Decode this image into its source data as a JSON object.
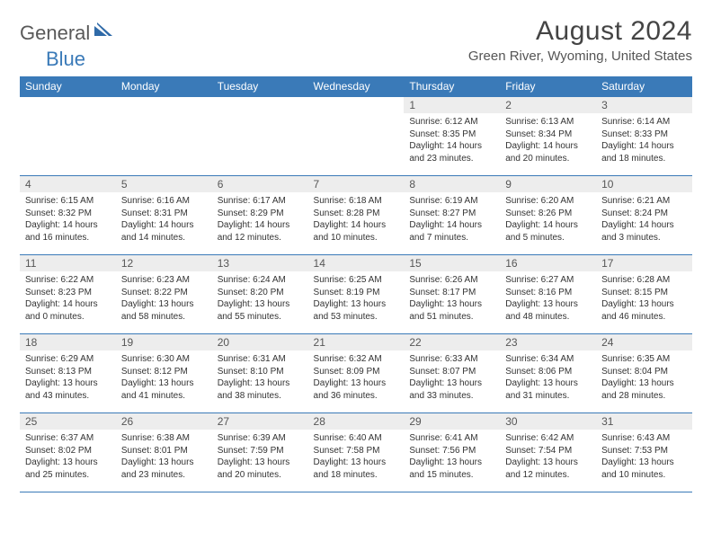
{
  "logo": {
    "text_general": "General",
    "text_blue": "Blue",
    "mark_color": "#2f6aa8"
  },
  "header": {
    "title": "August 2024",
    "subtitle": "Green River, Wyoming, United States"
  },
  "colors": {
    "header_bg": "#3a7ab8",
    "header_text": "#ffffff",
    "daynum_bg": "#ededed",
    "border": "#3a7ab8"
  },
  "weekdays": [
    "Sunday",
    "Monday",
    "Tuesday",
    "Wednesday",
    "Thursday",
    "Friday",
    "Saturday"
  ],
  "weeks": [
    [
      {
        "empty": true
      },
      {
        "empty": true
      },
      {
        "empty": true
      },
      {
        "empty": true
      },
      {
        "day": "1",
        "sunrise": "Sunrise: 6:12 AM",
        "sunset": "Sunset: 8:35 PM",
        "daylight": "Daylight: 14 hours and 23 minutes."
      },
      {
        "day": "2",
        "sunrise": "Sunrise: 6:13 AM",
        "sunset": "Sunset: 8:34 PM",
        "daylight": "Daylight: 14 hours and 20 minutes."
      },
      {
        "day": "3",
        "sunrise": "Sunrise: 6:14 AM",
        "sunset": "Sunset: 8:33 PM",
        "daylight": "Daylight: 14 hours and 18 minutes."
      }
    ],
    [
      {
        "day": "4",
        "sunrise": "Sunrise: 6:15 AM",
        "sunset": "Sunset: 8:32 PM",
        "daylight": "Daylight: 14 hours and 16 minutes."
      },
      {
        "day": "5",
        "sunrise": "Sunrise: 6:16 AM",
        "sunset": "Sunset: 8:31 PM",
        "daylight": "Daylight: 14 hours and 14 minutes."
      },
      {
        "day": "6",
        "sunrise": "Sunrise: 6:17 AM",
        "sunset": "Sunset: 8:29 PM",
        "daylight": "Daylight: 14 hours and 12 minutes."
      },
      {
        "day": "7",
        "sunrise": "Sunrise: 6:18 AM",
        "sunset": "Sunset: 8:28 PM",
        "daylight": "Daylight: 14 hours and 10 minutes."
      },
      {
        "day": "8",
        "sunrise": "Sunrise: 6:19 AM",
        "sunset": "Sunset: 8:27 PM",
        "daylight": "Daylight: 14 hours and 7 minutes."
      },
      {
        "day": "9",
        "sunrise": "Sunrise: 6:20 AM",
        "sunset": "Sunset: 8:26 PM",
        "daylight": "Daylight: 14 hours and 5 minutes."
      },
      {
        "day": "10",
        "sunrise": "Sunrise: 6:21 AM",
        "sunset": "Sunset: 8:24 PM",
        "daylight": "Daylight: 14 hours and 3 minutes."
      }
    ],
    [
      {
        "day": "11",
        "sunrise": "Sunrise: 6:22 AM",
        "sunset": "Sunset: 8:23 PM",
        "daylight": "Daylight: 14 hours and 0 minutes."
      },
      {
        "day": "12",
        "sunrise": "Sunrise: 6:23 AM",
        "sunset": "Sunset: 8:22 PM",
        "daylight": "Daylight: 13 hours and 58 minutes."
      },
      {
        "day": "13",
        "sunrise": "Sunrise: 6:24 AM",
        "sunset": "Sunset: 8:20 PM",
        "daylight": "Daylight: 13 hours and 55 minutes."
      },
      {
        "day": "14",
        "sunrise": "Sunrise: 6:25 AM",
        "sunset": "Sunset: 8:19 PM",
        "daylight": "Daylight: 13 hours and 53 minutes."
      },
      {
        "day": "15",
        "sunrise": "Sunrise: 6:26 AM",
        "sunset": "Sunset: 8:17 PM",
        "daylight": "Daylight: 13 hours and 51 minutes."
      },
      {
        "day": "16",
        "sunrise": "Sunrise: 6:27 AM",
        "sunset": "Sunset: 8:16 PM",
        "daylight": "Daylight: 13 hours and 48 minutes."
      },
      {
        "day": "17",
        "sunrise": "Sunrise: 6:28 AM",
        "sunset": "Sunset: 8:15 PM",
        "daylight": "Daylight: 13 hours and 46 minutes."
      }
    ],
    [
      {
        "day": "18",
        "sunrise": "Sunrise: 6:29 AM",
        "sunset": "Sunset: 8:13 PM",
        "daylight": "Daylight: 13 hours and 43 minutes."
      },
      {
        "day": "19",
        "sunrise": "Sunrise: 6:30 AM",
        "sunset": "Sunset: 8:12 PM",
        "daylight": "Daylight: 13 hours and 41 minutes."
      },
      {
        "day": "20",
        "sunrise": "Sunrise: 6:31 AM",
        "sunset": "Sunset: 8:10 PM",
        "daylight": "Daylight: 13 hours and 38 minutes."
      },
      {
        "day": "21",
        "sunrise": "Sunrise: 6:32 AM",
        "sunset": "Sunset: 8:09 PM",
        "daylight": "Daylight: 13 hours and 36 minutes."
      },
      {
        "day": "22",
        "sunrise": "Sunrise: 6:33 AM",
        "sunset": "Sunset: 8:07 PM",
        "daylight": "Daylight: 13 hours and 33 minutes."
      },
      {
        "day": "23",
        "sunrise": "Sunrise: 6:34 AM",
        "sunset": "Sunset: 8:06 PM",
        "daylight": "Daylight: 13 hours and 31 minutes."
      },
      {
        "day": "24",
        "sunrise": "Sunrise: 6:35 AM",
        "sunset": "Sunset: 8:04 PM",
        "daylight": "Daylight: 13 hours and 28 minutes."
      }
    ],
    [
      {
        "day": "25",
        "sunrise": "Sunrise: 6:37 AM",
        "sunset": "Sunset: 8:02 PM",
        "daylight": "Daylight: 13 hours and 25 minutes."
      },
      {
        "day": "26",
        "sunrise": "Sunrise: 6:38 AM",
        "sunset": "Sunset: 8:01 PM",
        "daylight": "Daylight: 13 hours and 23 minutes."
      },
      {
        "day": "27",
        "sunrise": "Sunrise: 6:39 AM",
        "sunset": "Sunset: 7:59 PM",
        "daylight": "Daylight: 13 hours and 20 minutes."
      },
      {
        "day": "28",
        "sunrise": "Sunrise: 6:40 AM",
        "sunset": "Sunset: 7:58 PM",
        "daylight": "Daylight: 13 hours and 18 minutes."
      },
      {
        "day": "29",
        "sunrise": "Sunrise: 6:41 AM",
        "sunset": "Sunset: 7:56 PM",
        "daylight": "Daylight: 13 hours and 15 minutes."
      },
      {
        "day": "30",
        "sunrise": "Sunrise: 6:42 AM",
        "sunset": "Sunset: 7:54 PM",
        "daylight": "Daylight: 13 hours and 12 minutes."
      },
      {
        "day": "31",
        "sunrise": "Sunrise: 6:43 AM",
        "sunset": "Sunset: 7:53 PM",
        "daylight": "Daylight: 13 hours and 10 minutes."
      }
    ]
  ]
}
